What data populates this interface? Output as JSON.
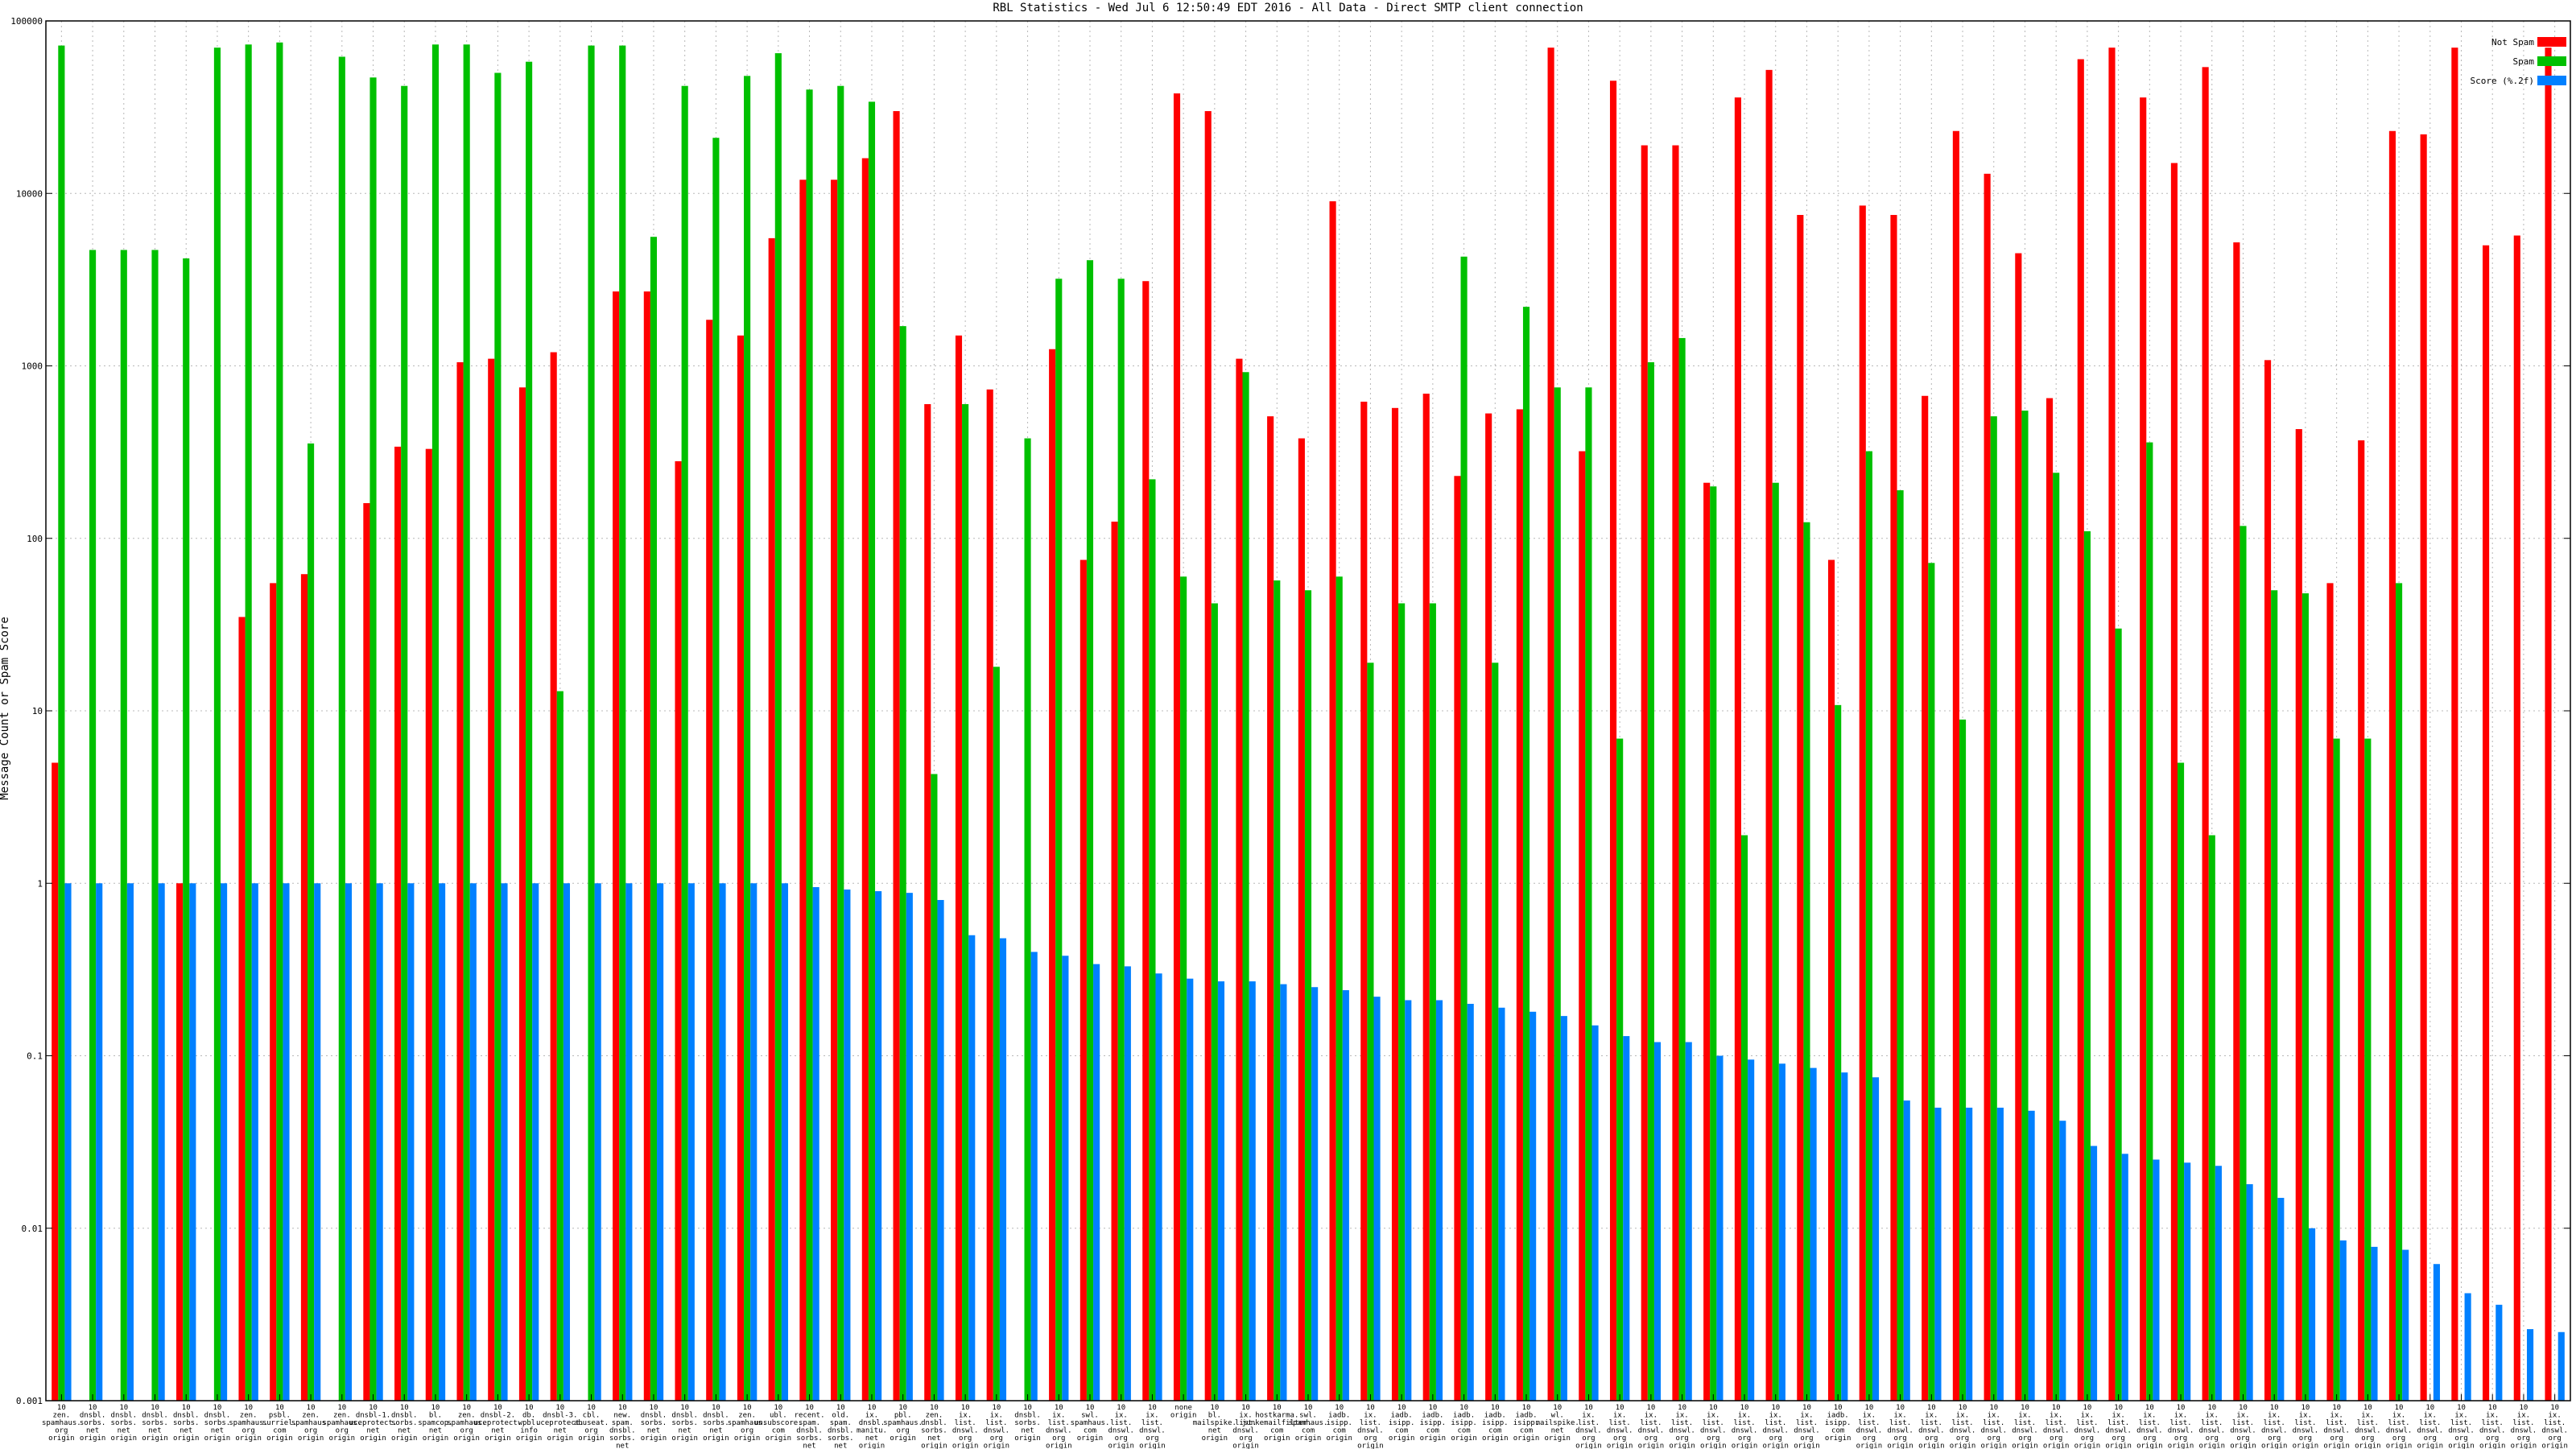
{
  "chart_data": {
    "type": "bar",
    "title": "RBL Statistics - Wed Jul  6 12:50:49 EDT 2016 - All Data - Direct SMTP client connection",
    "xlabel": "",
    "ylabel": "Message Count or Spam Score",
    "yscale": "log",
    "ylim": [
      0.001,
      100000
    ],
    "yticks": [
      {
        "v": 0.001,
        "label": "0.001"
      },
      {
        "v": 0.01,
        "label": "0.01"
      },
      {
        "v": 0.1,
        "label": "0.1"
      },
      {
        "v": 1,
        "label": "1"
      },
      {
        "v": 10,
        "label": "10"
      },
      {
        "v": 100,
        "label": "100"
      },
      {
        "v": 1000,
        "label": "1000"
      },
      {
        "v": 10000,
        "label": "10000"
      },
      {
        "v": 100000,
        "label": "100000"
      }
    ],
    "grid": true,
    "legend_position": "top-right",
    "colors": {
      "not_spam": "#ff0000",
      "spam": "#00c000",
      "score": "#0080ff"
    },
    "categories": [
      [
        "10",
        "zen.",
        "spamhaus.",
        "org",
        "origin"
      ],
      [
        "10",
        "dnsbl.",
        "sorbs.",
        "net",
        "origin"
      ],
      [
        "10",
        "dnsbl.",
        "sorbs.",
        "net",
        "origin"
      ],
      [
        "10",
        "dnsbl.",
        "sorbs.",
        "net",
        "origin"
      ],
      [
        "10",
        "dnsbl.",
        "sorbs.",
        "net",
        "origin"
      ],
      [
        "10",
        "dnsbl.",
        "sorbs.",
        "net",
        "origin"
      ],
      [
        "10",
        "zen.",
        "spamhaus.",
        "org",
        "origin"
      ],
      [
        "10",
        "psbl.",
        "surriel.",
        "com",
        "origin"
      ],
      [
        "10",
        "zen.",
        "spamhaus.",
        "org",
        "origin"
      ],
      [
        "10",
        "zen.",
        "spamhaus.",
        "org",
        "origin"
      ],
      [
        "10",
        "dnsbl-1.",
        "uceprotect.",
        "net",
        "origin"
      ],
      [
        "10",
        "dnsbl.",
        "sorbs.",
        "net",
        "origin"
      ],
      [
        "10",
        "bl.",
        "spamcop.",
        "net",
        "origin"
      ],
      [
        "10",
        "zen.",
        "spamhaus.",
        "org",
        "origin"
      ],
      [
        "10",
        "dnsbl-2.",
        "uceprotect.",
        "net",
        "origin"
      ],
      [
        "10",
        "db.",
        "wpbl.",
        "info",
        "origin"
      ],
      [
        "10",
        "dnsbl-3.",
        "uceprotect.",
        "net",
        "origin"
      ],
      [
        "10",
        "cbl.",
        "abuseat.",
        "org",
        "origin"
      ],
      [
        "10",
        "new.",
        "spam.",
        "dnsbl.",
        "sorbs.",
        "net",
        "origin"
      ],
      [
        "10",
        "dnsbl.",
        "sorbs.",
        "net",
        "origin"
      ],
      [
        "10",
        "dnsbl.",
        "sorbs.",
        "net",
        "origin"
      ],
      [
        "10",
        "dnsbl.",
        "sorbs.",
        "net",
        "origin"
      ],
      [
        "10",
        "zen.",
        "spamhaus.",
        "org",
        "origin"
      ],
      [
        "10",
        "ubl.",
        "unsubscore.",
        "com",
        "origin"
      ],
      [
        "10",
        "recent.",
        "spam.",
        "dnsbl.",
        "sorbs.",
        "net",
        "origin"
      ],
      [
        "10",
        "old.",
        "spam.",
        "dnsbl.",
        "sorbs.",
        "net",
        "origin"
      ],
      [
        "10",
        "ix.",
        "dnsbl.",
        "manitu.",
        "net",
        "origin"
      ],
      [
        "10",
        "pbl.",
        "spamhaus.",
        "org",
        "origin"
      ],
      [
        "10",
        "zen.",
        "dnsbl.",
        "sorbs.",
        "net",
        "origin"
      ],
      [
        "10",
        "ix.",
        "list.",
        "dnswl.",
        "org",
        "origin"
      ],
      [
        "10",
        "ix.",
        "list.",
        "dnswl.",
        "org",
        "origin"
      ],
      [
        "10",
        "dnsbl.",
        "sorbs.",
        "net",
        "origin"
      ],
      [
        "10",
        "ix.",
        "list.",
        "dnswl.",
        "org",
        "origin"
      ],
      [
        "10",
        "swl.",
        "spamhaus.",
        "com",
        "origin"
      ],
      [
        "10",
        "ix.",
        "list.",
        "dnswl.",
        "org",
        "origin"
      ],
      [
        "10",
        "ix.",
        "list.",
        "dnswl.",
        "org",
        "origin"
      ],
      [
        "none",
        "origin"
      ],
      [
        "10",
        "bl.",
        "mailspike.",
        "net",
        "origin"
      ],
      [
        "10",
        "ix.",
        "list.",
        "dnswl.",
        "org",
        "origin"
      ],
      [
        "10",
        "hostkarma.",
        "junkemailfilter.",
        "com",
        "origin"
      ],
      [
        "10",
        "swl.",
        "spamhaus.",
        "com",
        "origin"
      ],
      [
        "10",
        "iadb.",
        "isipp.",
        "com",
        "origin"
      ],
      [
        "10",
        "ix.",
        "list.",
        "dnswl.",
        "org",
        "origin"
      ],
      [
        "10",
        "iadb.",
        "isipp.",
        "com",
        "origin"
      ],
      [
        "10",
        "iadb.",
        "isipp.",
        "com",
        "origin"
      ],
      [
        "10",
        "iadb.",
        "isipp.",
        "com",
        "origin"
      ],
      [
        "10",
        "iadb.",
        "isipp.",
        "com",
        "origin"
      ],
      [
        "10",
        "iadb.",
        "isipp.",
        "com",
        "origin"
      ],
      [
        "10",
        "wl.",
        "mailspike.",
        "net",
        "origin"
      ],
      [
        "10",
        "ix.",
        "list.",
        "dnswl.",
        "org",
        "origin"
      ],
      [
        "10",
        "ix.",
        "list.",
        "dnswl.",
        "org",
        "origin"
      ],
      [
        "10",
        "ix.",
        "list.",
        "dnswl.",
        "org",
        "origin"
      ],
      [
        "10",
        "ix.",
        "list.",
        "dnswl.",
        "org",
        "origin"
      ],
      [
        "10",
        "ix.",
        "list.",
        "dnswl.",
        "org",
        "origin"
      ],
      [
        "10",
        "ix.",
        "list.",
        "dnswl.",
        "org",
        "origin"
      ],
      [
        "10",
        "ix.",
        "list.",
        "dnswl.",
        "org",
        "origin"
      ],
      [
        "10",
        "ix.",
        "list.",
        "dnswl.",
        "org",
        "origin"
      ],
      [
        "10",
        "iadb.",
        "isipp.",
        "com",
        "origin"
      ],
      [
        "10",
        "ix.",
        "list.",
        "dnswl.",
        "org",
        "origin"
      ],
      [
        "10",
        "ix.",
        "list.",
        "dnswl.",
        "org",
        "origin"
      ],
      [
        "10",
        "ix.",
        "list.",
        "dnswl.",
        "org",
        "origin"
      ],
      [
        "10",
        "ix.",
        "list.",
        "dnswl.",
        "org",
        "origin"
      ],
      [
        "10",
        "ix.",
        "list.",
        "dnswl.",
        "org",
        "origin"
      ],
      [
        "10",
        "ix.",
        "list.",
        "dnswl.",
        "org",
        "origin"
      ],
      [
        "10",
        "ix.",
        "list.",
        "dnswl.",
        "org",
        "origin"
      ],
      [
        "10",
        "ix.",
        "list.",
        "dnswl.",
        "org",
        "origin"
      ],
      [
        "10",
        "ix.",
        "list.",
        "dnswl.",
        "org",
        "origin"
      ],
      [
        "10",
        "ix.",
        "list.",
        "dnswl.",
        "org",
        "origin"
      ],
      [
        "10",
        "ix.",
        "list.",
        "dnswl.",
        "org",
        "origin"
      ],
      [
        "10",
        "ix.",
        "list.",
        "dnswl.",
        "org",
        "origin"
      ],
      [
        "10",
        "ix.",
        "list.",
        "dnswl.",
        "org",
        "origin"
      ],
      [
        "10",
        "ix.",
        "list.",
        "dnswl.",
        "org",
        "origin"
      ],
      [
        "10",
        "ix.",
        "list.",
        "dnswl.",
        "org",
        "origin"
      ],
      [
        "10",
        "ix.",
        "list.",
        "dnswl.",
        "org",
        "origin"
      ],
      [
        "10",
        "ix.",
        "list.",
        "dnswl.",
        "org",
        "origin"
      ],
      [
        "10",
        "ix.",
        "list.",
        "dnswl.",
        "org",
        "origin"
      ],
      [
        "10",
        "ix.",
        "list.",
        "dnswl.",
        "org",
        "origin"
      ],
      [
        "10",
        "ix.",
        "list.",
        "dnswl.",
        "org",
        "origin"
      ],
      [
        "10",
        "ix.",
        "list.",
        "dnswl.",
        "org",
        "origin"
      ],
      [
        "10",
        "ix.",
        "list.",
        "dnswl.",
        "org",
        "origin"
      ],
      [
        "10",
        "ix.",
        "list.",
        "dnswl.",
        "org",
        "origin"
      ]
    ],
    "series": [
      {
        "name": "Not Spam",
        "values": [
          5,
          null,
          null,
          null,
          1,
          null,
          35,
          55,
          62,
          null,
          160,
          340,
          330,
          1050,
          1100,
          750,
          1200,
          null,
          2700,
          2700,
          280,
          1850,
          1500,
          5500,
          12000,
          12000,
          16000,
          30000,
          600,
          1500,
          730,
          null,
          1250,
          75,
          125,
          3100,
          38000,
          30000,
          1100,
          510,
          380,
          9000,
          620,
          570,
          690,
          230,
          530,
          560,
          70000,
          320,
          45000,
          19000,
          19000,
          210,
          36000,
          52000,
          7500,
          75,
          8500,
          7500,
          670,
          23000,
          13000,
          4500,
          650,
          60000,
          70000,
          36000,
          15000,
          54000,
          5200,
          1080,
          430,
          55,
          370,
          23000,
          22000,
          70000,
          5000,
          5700,
          70000
        ],
        "name_label": "Not Spam"
      },
      {
        "name": "Spam",
        "values": [
          72000,
          4700,
          4700,
          4700,
          4200,
          70000,
          73000,
          75000,
          355,
          62000,
          47000,
          42000,
          73000,
          73000,
          50000,
          58000,
          13,
          72000,
          72000,
          5600,
          42000,
          21000,
          48000,
          65000,
          40000,
          42000,
          34000,
          1700,
          4.3,
          600,
          18,
          380,
          3200,
          4100,
          3200,
          220,
          60,
          42,
          920,
          57,
          50,
          60,
          19,
          42,
          42,
          4300,
          19,
          2200,
          750,
          750,
          6.9,
          1050,
          1450,
          200,
          1.9,
          210,
          124,
          10.8,
          320,
          190,
          72,
          8.9,
          510,
          550,
          240,
          110,
          30,
          360,
          5,
          1.9,
          118,
          50,
          48,
          6.9,
          6.9,
          55,
          null,
          null,
          null,
          null,
          null
        ],
        "name_label": "Spam"
      },
      {
        "name": "Score (%.2f)",
        "values": [
          1,
          1,
          1,
          1,
          1,
          1,
          1,
          1,
          1,
          1,
          1,
          1,
          1,
          1,
          1,
          1,
          1,
          1,
          1,
          1,
          1,
          1,
          1,
          1,
          0.95,
          0.92,
          0.9,
          0.88,
          0.8,
          0.5,
          0.48,
          0.4,
          0.38,
          0.34,
          0.33,
          0.3,
          0.28,
          0.27,
          0.27,
          0.26,
          0.25,
          0.24,
          0.22,
          0.21,
          0.21,
          0.2,
          0.19,
          0.18,
          0.17,
          0.15,
          0.13,
          0.12,
          0.12,
          0.1,
          0.095,
          0.09,
          0.085,
          0.08,
          0.075,
          0.055,
          0.05,
          0.05,
          0.05,
          0.048,
          0.042,
          0.03,
          0.027,
          0.025,
          0.024,
          0.023,
          0.018,
          0.015,
          0.01,
          0.0085,
          0.0078,
          0.0075,
          0.0062,
          0.0042,
          0.0036,
          0.0026,
          0.0025
        ]
      }
    ]
  },
  "legend": [
    {
      "label": "Not Spam",
      "color": "#ff0000"
    },
    {
      "label": "Spam",
      "color": "#00c000"
    },
    {
      "label": "Score (%.2f)",
      "color": "#0080ff"
    }
  ]
}
